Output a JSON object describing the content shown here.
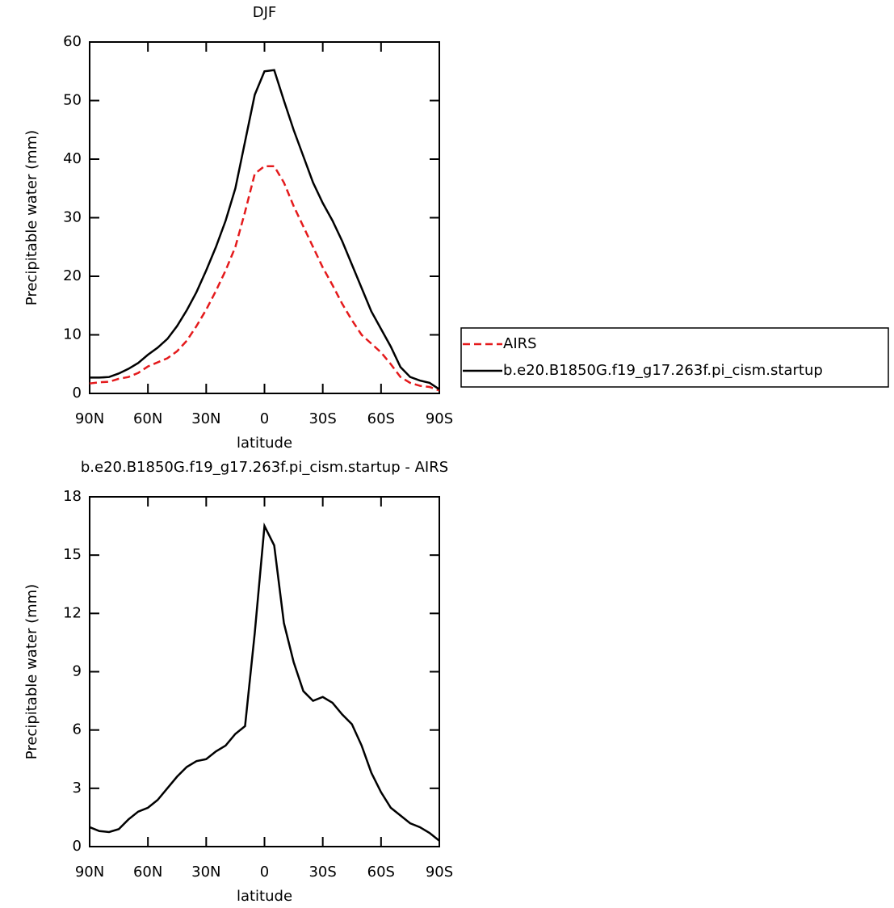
{
  "chart_data": [
    {
      "type": "line",
      "title": "DJF",
      "xlabel": "latitude",
      "ylabel": "Precipitable water (mm)",
      "x": [
        90,
        85,
        80,
        75,
        70,
        65,
        60,
        55,
        50,
        45,
        40,
        35,
        30,
        25,
        20,
        15,
        10,
        5,
        0,
        -5,
        -10,
        -15,
        -20,
        -25,
        -30,
        -35,
        -40,
        -45,
        -50,
        -55,
        -60,
        -65,
        -70,
        -75,
        -80,
        -85,
        -90
      ],
      "series": [
        {
          "name": "AIRS",
          "color": "#e41a1c",
          "line_style": "dashed",
          "values": [
            1.7,
            1.9,
            2.0,
            2.5,
            2.8,
            3.5,
            4.6,
            5.3,
            6.0,
            7.2,
            9.0,
            11.5,
            14.3,
            17.5,
            21,
            25,
            31,
            37.5,
            38.8,
            38.8,
            36,
            32,
            28.5,
            25,
            21.5,
            18.5,
            15.3,
            12.5,
            10,
            8.5,
            7,
            5,
            2.8,
            1.8,
            1.3,
            1.1,
            0.5
          ]
        },
        {
          "name": "b.e20.B1850G.f19_g17.263f.pi_cism.startup",
          "color": "#000000",
          "line_style": "solid",
          "values": [
            2.7,
            2.7,
            2.8,
            3.4,
            4.2,
            5.2,
            6.6,
            7.8,
            9.3,
            11.5,
            14.2,
            17.3,
            21,
            25,
            29.5,
            35,
            43,
            51,
            55,
            55.2,
            50,
            45,
            40.5,
            36,
            32.5,
            29.5,
            26,
            22,
            18,
            14,
            11,
            8,
            4.5,
            2.8,
            2.2,
            1.8,
            0.7
          ]
        }
      ],
      "xlim": [
        90,
        -90
      ],
      "xticks": [
        {
          "value": 90,
          "label": "90N"
        },
        {
          "value": 60,
          "label": "60N"
        },
        {
          "value": 30,
          "label": "30N"
        },
        0,
        {
          "value": -30,
          "label": "30S"
        },
        {
          "value": -60,
          "label": "60S"
        },
        {
          "value": -90,
          "label": "90S"
        }
      ],
      "ylim": [
        0,
        60
      ],
      "yticks": [
        0,
        10,
        20,
        30,
        40,
        50,
        60
      ],
      "grid": false,
      "legend": "right"
    },
    {
      "type": "line",
      "title": "b.e20.B1850G.f19_g17.263f.pi_cism.startup - AIRS",
      "xlabel": "latitude",
      "ylabel": "Precipitable water (mm)",
      "x": [
        90,
        85,
        80,
        75,
        70,
        65,
        60,
        55,
        50,
        45,
        40,
        35,
        30,
        25,
        20,
        15,
        10,
        5,
        0,
        -5,
        -10,
        -15,
        -20,
        -25,
        -30,
        -35,
        -40,
        -45,
        -50,
        -55,
        -60,
        -65,
        -70,
        -75,
        -80,
        -85,
        -90
      ],
      "color": "#000000",
      "values": [
        1.0,
        0.8,
        0.75,
        0.9,
        1.4,
        1.8,
        2.0,
        2.4,
        3.0,
        3.6,
        4.1,
        4.4,
        4.5,
        4.9,
        5.2,
        5.8,
        6.2,
        11,
        16.5,
        15.5,
        11.5,
        9.5,
        8,
        7.5,
        7.7,
        7.4,
        6.8,
        6.3,
        5.2,
        3.8,
        2.8,
        2.0,
        1.6,
        1.2,
        1.0,
        0.7,
        0.3
      ],
      "xlim": [
        90,
        -90
      ],
      "xticks": [
        {
          "value": 90,
          "label": "90N"
        },
        {
          "value": 60,
          "label": "60N"
        },
        {
          "value": 30,
          "label": "30N"
        },
        0,
        {
          "value": -30,
          "label": "30S"
        },
        {
          "value": -60,
          "label": "60S"
        },
        {
          "value": -90,
          "label": "90S"
        }
      ],
      "ylim": [
        0,
        18
      ],
      "yticks": [
        0,
        3,
        6,
        9,
        12,
        15,
        18
      ],
      "grid": false
    }
  ]
}
